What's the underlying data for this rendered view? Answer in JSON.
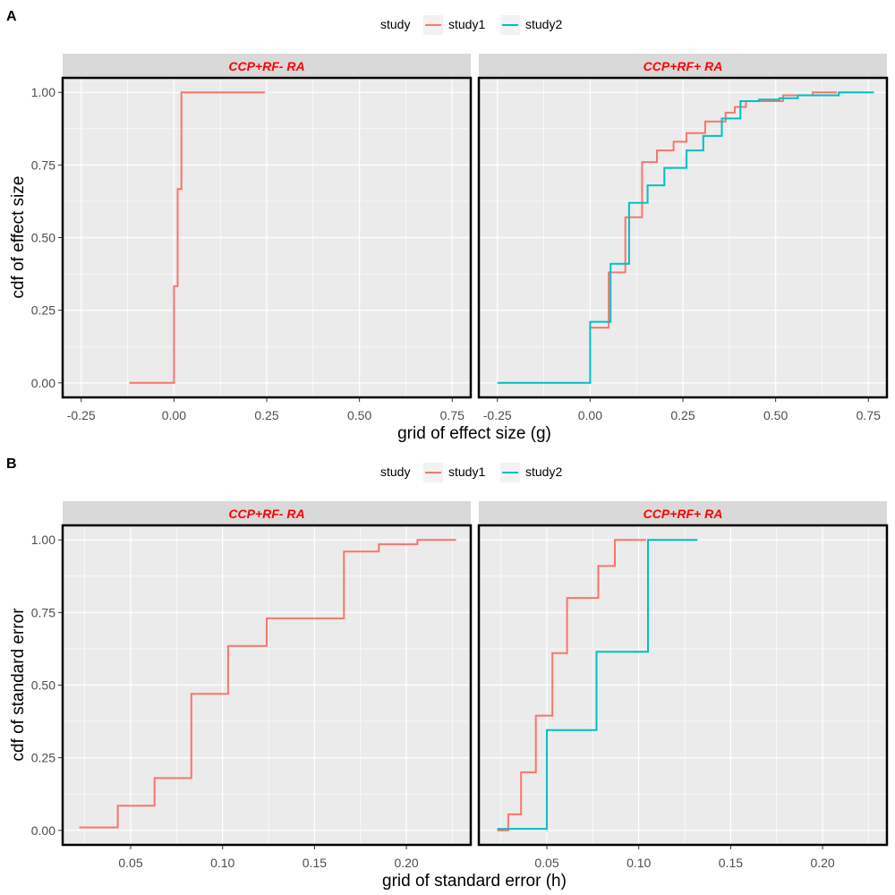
{
  "colors": {
    "study1": "#F8766D",
    "study2": "#00BFC4",
    "strip_text": "#FF0000",
    "panel_bg": "#EBEBEB",
    "strip_bg": "#D9D9D9"
  },
  "chart_data": [
    {
      "id": "A",
      "type": "line",
      "step": true,
      "panel_label": "A",
      "legend": {
        "title": "study",
        "items": [
          "study1",
          "study2"
        ],
        "position": "top"
      },
      "xlabel": "grid of effect size (g)",
      "ylabel": "cdf of effect size",
      "xlim": [
        -0.3,
        0.8
      ],
      "ylim": [
        -0.05,
        1.05
      ],
      "x_ticks": [
        -0.25,
        0,
        0.25,
        0.5,
        0.75
      ],
      "x_tick_labels": [
        "-0.25",
        "0.00",
        "0.25",
        "0.50",
        "0.75"
      ],
      "y_ticks": [
        0,
        0.25,
        0.5,
        0.75,
        1
      ],
      "y_tick_labels": [
        "0.00",
        "0.25",
        "0.50",
        "0.75",
        "1.00"
      ],
      "facets": [
        {
          "strip": "CCP+RF- RA",
          "series": [
            {
              "name": "study1",
              "x": [
                -0.12,
                0.0,
                0.0,
                0.01,
                0.01,
                0.02,
                0.02,
                0.245
              ],
              "y": [
                0.0,
                0.0,
                0.333,
                0.333,
                0.667,
                0.667,
                1.0,
                1.0
              ]
            }
          ]
        },
        {
          "strip": "CCP+RF+ RA",
          "series": [
            {
              "name": "study1",
              "x": [
                0.0,
                0.05,
                0.05,
                0.095,
                0.095,
                0.14,
                0.14,
                0.18,
                0.18,
                0.225,
                0.225,
                0.26,
                0.26,
                0.31,
                0.31,
                0.365,
                0.365,
                0.39,
                0.39,
                0.42,
                0.42,
                0.52,
                0.52,
                0.6,
                0.6,
                0.665
              ],
              "y": [
                0.19,
                0.19,
                0.38,
                0.38,
                0.57,
                0.57,
                0.76,
                0.76,
                0.8,
                0.8,
                0.83,
                0.83,
                0.86,
                0.86,
                0.9,
                0.9,
                0.93,
                0.93,
                0.95,
                0.95,
                0.97,
                0.97,
                0.99,
                0.99,
                1.0,
                1.0
              ]
            },
            {
              "name": "study2",
              "x": [
                -0.25,
                0.0,
                0.0,
                0.055,
                0.055,
                0.105,
                0.105,
                0.155,
                0.155,
                0.2,
                0.2,
                0.26,
                0.26,
                0.305,
                0.305,
                0.355,
                0.355,
                0.405,
                0.405,
                0.455,
                0.455,
                0.51,
                0.51,
                0.56,
                0.56,
                0.67,
                0.67,
                0.765
              ],
              "y": [
                0.0,
                0.0,
                0.21,
                0.21,
                0.41,
                0.41,
                0.62,
                0.62,
                0.68,
                0.68,
                0.74,
                0.74,
                0.8,
                0.8,
                0.85,
                0.85,
                0.91,
                0.91,
                0.97,
                0.97,
                0.975,
                0.975,
                0.98,
                0.98,
                0.99,
                0.99,
                1.0,
                1.0
              ]
            }
          ]
        }
      ]
    },
    {
      "id": "B",
      "type": "line",
      "step": true,
      "panel_label": "B",
      "legend": {
        "title": "study",
        "items": [
          "study1",
          "study2"
        ],
        "position": "top"
      },
      "xlabel": "grid of standard error (h)",
      "ylabel": "cdf of standard error",
      "xlim": [
        0.013,
        0.235
      ],
      "ylim": [
        -0.05,
        1.05
      ],
      "x_ticks": [
        0.05,
        0.1,
        0.15,
        0.2
      ],
      "x_tick_labels": [
        "0.05",
        "0.10",
        "0.15",
        "0.20"
      ],
      "y_ticks": [
        0,
        0.25,
        0.5,
        0.75,
        1
      ],
      "y_tick_labels": [
        "0.00",
        "0.25",
        "0.50",
        "0.75",
        "1.00"
      ],
      "facets": [
        {
          "strip": "CCP+RF- RA",
          "series": [
            {
              "name": "study1",
              "x": [
                0.022,
                0.043,
                0.043,
                0.063,
                0.063,
                0.083,
                0.083,
                0.103,
                0.103,
                0.124,
                0.124,
                0.166,
                0.166,
                0.185,
                0.185,
                0.206,
                0.206,
                0.227
              ],
              "y": [
                0.01,
                0.01,
                0.085,
                0.085,
                0.18,
                0.18,
                0.47,
                0.47,
                0.635,
                0.635,
                0.73,
                0.73,
                0.96,
                0.96,
                0.985,
                0.985,
                1.0,
                1.0
              ]
            }
          ]
        },
        {
          "strip": "CCP+RF+ RA",
          "series": [
            {
              "name": "study1",
              "x": [
                0.023,
                0.029,
                0.029,
                0.036,
                0.036,
                0.044,
                0.044,
                0.053,
                0.053,
                0.061,
                0.061,
                0.078,
                0.078,
                0.087,
                0.087,
                0.104
              ],
              "y": [
                0.0,
                0.0,
                0.055,
                0.055,
                0.2,
                0.2,
                0.395,
                0.395,
                0.61,
                0.61,
                0.8,
                0.8,
                0.91,
                0.91,
                1.0,
                1.0
              ]
            },
            {
              "name": "study2",
              "x": [
                0.023,
                0.05,
                0.05,
                0.077,
                0.077,
                0.105,
                0.105,
                0.132
              ],
              "y": [
                0.005,
                0.005,
                0.345,
                0.345,
                0.615,
                0.615,
                1.0,
                1.0
              ]
            }
          ]
        }
      ]
    }
  ]
}
